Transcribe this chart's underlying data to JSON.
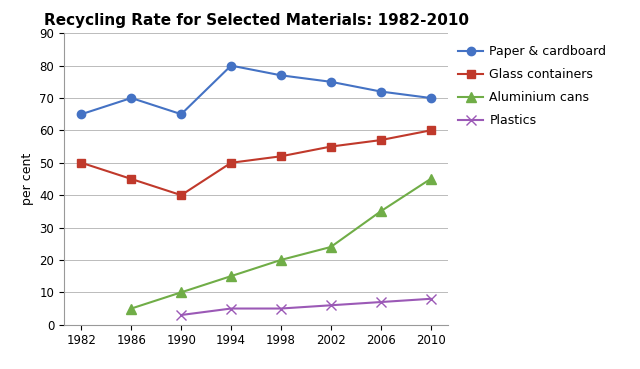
{
  "title": "Recycling Rate for Selected Materials: 1982-2010",
  "ylabel": "per cent",
  "years": [
    1982,
    1986,
    1990,
    1994,
    1998,
    2002,
    2006,
    2010
  ],
  "series": [
    {
      "label": "Paper & cardboard",
      "values": [
        65,
        70,
        65,
        80,
        77,
        75,
        72,
        70
      ],
      "color": "#4472C4",
      "marker": "o",
      "markersize": 6,
      "linewidth": 1.5
    },
    {
      "label": "Glass containers",
      "values": [
        50,
        45,
        40,
        50,
        52,
        55,
        57,
        60
      ],
      "color": "#C0392B",
      "marker": "s",
      "markersize": 6,
      "linewidth": 1.5
    },
    {
      "label": "Aluminium cans",
      "values": [
        null,
        5,
        10,
        15,
        20,
        24,
        35,
        45
      ],
      "color": "#70AD47",
      "marker": "^",
      "markersize": 7,
      "linewidth": 1.5
    },
    {
      "label": "Plastics",
      "values": [
        null,
        null,
        3,
        5,
        5,
        6,
        7,
        8
      ],
      "color": "#9B59B6",
      "marker": "x",
      "markersize": 7,
      "linewidth": 1.5
    }
  ],
  "ylim": [
    0,
    90
  ],
  "yticks": [
    0,
    10,
    20,
    30,
    40,
    50,
    60,
    70,
    80,
    90
  ],
  "xticks": [
    1982,
    1986,
    1990,
    1994,
    1998,
    2002,
    2006,
    2010
  ],
  "background_color": "#FFFFFF",
  "grid_color": "#BBBBBB",
  "title_fontsize": 11,
  "axis_label_fontsize": 9,
  "tick_fontsize": 8.5,
  "legend_fontsize": 9
}
